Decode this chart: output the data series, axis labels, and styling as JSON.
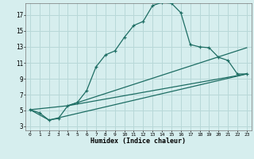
{
  "title": "",
  "xlabel": "Humidex (Indice chaleur)",
  "bg_color": "#d6eeee",
  "grid_color": "#b8d8d8",
  "line_color": "#1e6e64",
  "xlim": [
    -0.5,
    23.5
  ],
  "ylim": [
    2.5,
    18.5
  ],
  "xticks": [
    0,
    1,
    2,
    3,
    4,
    5,
    6,
    7,
    8,
    9,
    10,
    11,
    12,
    13,
    14,
    15,
    16,
    17,
    18,
    19,
    20,
    21,
    22,
    23
  ],
  "yticks": [
    3,
    5,
    7,
    9,
    11,
    13,
    15,
    17
  ],
  "curve1_x": [
    0,
    1,
    2,
    3,
    4,
    5,
    6,
    7,
    8,
    9,
    10,
    11,
    12,
    13,
    14,
    15,
    16,
    17,
    18,
    19,
    20,
    21,
    22,
    23
  ],
  "curve1_y": [
    5.1,
    4.7,
    3.8,
    4.0,
    5.6,
    6.0,
    7.5,
    10.5,
    12.0,
    12.5,
    14.2,
    15.7,
    16.2,
    18.2,
    18.6,
    18.5,
    17.3,
    13.3,
    13.0,
    12.9,
    11.7,
    11.3,
    9.6,
    9.6
  ],
  "line2_x": [
    0,
    2,
    23
  ],
  "line2_y": [
    5.1,
    3.8,
    9.6
  ],
  "line3_x": [
    0,
    4,
    23
  ],
  "line3_y": [
    5.1,
    5.6,
    9.6
  ],
  "line4_x": [
    4,
    23
  ],
  "line4_y": [
    5.6,
    12.9
  ]
}
